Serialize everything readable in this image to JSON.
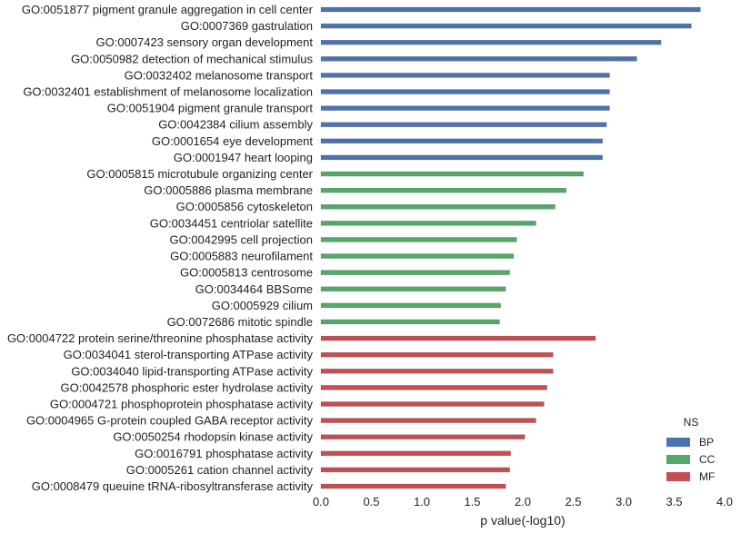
{
  "chart_data": {
    "type": "bar",
    "orientation": "horizontal",
    "xlabel": "p value(-log10)",
    "xlim": [
      0.0,
      4.0
    ],
    "xticks": [
      "0.0",
      "0.5",
      "1.0",
      "1.5",
      "2.0",
      "2.5",
      "3.0",
      "3.5",
      "4.0"
    ],
    "grid": false,
    "legend": {
      "title": "NS",
      "placement": "bottom-right",
      "entries": [
        {
          "name": "BP",
          "color": "#4c72b0"
        },
        {
          "name": "CC",
          "color": "#55a868"
        },
        {
          "name": "MF",
          "color": "#c44e52"
        }
      ]
    },
    "bars": [
      {
        "label": "GO:0051877 pigment granule aggregation in cell center",
        "value": 3.76,
        "group": "BP"
      },
      {
        "label": "GO:0007369 gastrulation",
        "value": 3.67,
        "group": "BP"
      },
      {
        "label": "GO:0007423 sensory organ development",
        "value": 3.37,
        "group": "BP"
      },
      {
        "label": "GO:0050982 detection of mechanical stimulus",
        "value": 3.13,
        "group": "BP"
      },
      {
        "label": "GO:0032402 melanosome transport",
        "value": 2.86,
        "group": "BP"
      },
      {
        "label": "GO:0032401 establishment of melanosome localization",
        "value": 2.86,
        "group": "BP"
      },
      {
        "label": "GO:0051904 pigment granule transport",
        "value": 2.86,
        "group": "BP"
      },
      {
        "label": "GO:0042384 cilium assembly",
        "value": 2.83,
        "group": "BP"
      },
      {
        "label": "GO:0001654 eye development",
        "value": 2.79,
        "group": "BP"
      },
      {
        "label": "GO:0001947 heart looping",
        "value": 2.79,
        "group": "BP"
      },
      {
        "label": "GO:0005815 microtubule organizing center",
        "value": 2.6,
        "group": "CC"
      },
      {
        "label": "GO:0005886 plasma membrane",
        "value": 2.43,
        "group": "CC"
      },
      {
        "label": "GO:0005856 cytoskeleton",
        "value": 2.32,
        "group": "CC"
      },
      {
        "label": "GO:0034451 centriolar satellite",
        "value": 2.13,
        "group": "CC"
      },
      {
        "label": "GO:0042995 cell projection",
        "value": 1.94,
        "group": "CC"
      },
      {
        "label": "GO:0005883 neurofilament",
        "value": 1.91,
        "group": "CC"
      },
      {
        "label": "GO:0005813 centrosome",
        "value": 1.87,
        "group": "CC"
      },
      {
        "label": "GO:0034464 BBSome",
        "value": 1.83,
        "group": "CC"
      },
      {
        "label": "GO:0005929 cilium",
        "value": 1.78,
        "group": "CC"
      },
      {
        "label": "GO:0072686 mitotic spindle",
        "value": 1.77,
        "group": "CC"
      },
      {
        "label": "GO:0004722 protein serine/threonine phosphatase activity",
        "value": 2.72,
        "group": "MF"
      },
      {
        "label": "GO:0034041 sterol-transporting ATPase activity",
        "value": 2.3,
        "group": "MF"
      },
      {
        "label": "GO:0034040 lipid-transporting ATPase activity",
        "value": 2.3,
        "group": "MF"
      },
      {
        "label": "GO:0042578 phosphoric ester hydrolase activity",
        "value": 2.24,
        "group": "MF"
      },
      {
        "label": "GO:0004721 phosphoprotein phosphatase activity",
        "value": 2.21,
        "group": "MF"
      },
      {
        "label": "GO:0004965 G-protein coupled GABA receptor activity",
        "value": 2.13,
        "group": "MF"
      },
      {
        "label": "GO:0050254 rhodopsin kinase activity",
        "value": 2.02,
        "group": "MF"
      },
      {
        "label": "GO:0016791 phosphatase activity",
        "value": 1.88,
        "group": "MF"
      },
      {
        "label": "GO:0005261 cation channel activity",
        "value": 1.87,
        "group": "MF"
      },
      {
        "label": "GO:0008479 queuine tRNA-ribosyltransferase activity",
        "value": 1.83,
        "group": "MF"
      }
    ]
  }
}
